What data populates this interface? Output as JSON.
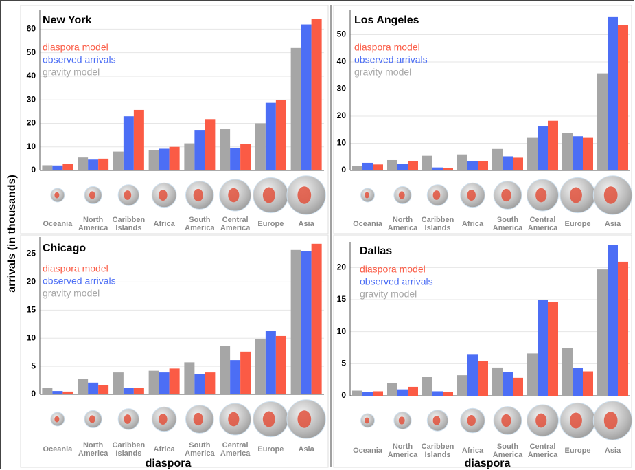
{
  "y_label": "arrivals (in thousands)",
  "x_label": "diaspora",
  "chart_data": [
    {
      "type": "bar",
      "title": "New York",
      "categories": [
        "Oceania",
        "North America",
        "Caribben Islands",
        "Africa",
        "South America",
        "Central America",
        "Europe",
        "Asia"
      ],
      "series": [
        {
          "name": "gravity model",
          "color": "#a6a6a6",
          "values": [
            2.2,
            5.5,
            8.0,
            8.5,
            11.5,
            17.5,
            20.0,
            52.0
          ]
        },
        {
          "name": "observed arrivals",
          "color": "#4c6ef5",
          "values": [
            2.1,
            4.6,
            23.0,
            9.2,
            17.2,
            9.5,
            28.7,
            62.0
          ]
        },
        {
          "name": "diaspora model",
          "color": "#fb5b45",
          "values": [
            2.9,
            5.0,
            25.7,
            10.0,
            21.8,
            11.2,
            30.0,
            64.5
          ]
        }
      ],
      "ylim": [
        0,
        68
      ],
      "yticks": [
        0,
        10,
        20,
        30,
        40,
        50,
        60
      ],
      "grid": true
    },
    {
      "type": "bar",
      "title": "Los Angeles",
      "categories": [
        "Oceania",
        "North America",
        "Caribben Islands",
        "Africa",
        "South America",
        "Central America",
        "Europe",
        "Asia"
      ],
      "series": [
        {
          "name": "gravity model",
          "color": "#a6a6a6",
          "values": [
            1.6,
            3.8,
            5.4,
            5.9,
            7.9,
            12.0,
            13.7,
            35.8
          ]
        },
        {
          "name": "observed arrivals",
          "color": "#4c6ef5",
          "values": [
            2.8,
            2.3,
            1.1,
            3.3,
            5.2,
            16.2,
            12.6,
            56.5
          ]
        },
        {
          "name": "diaspora model",
          "color": "#fb5b45",
          "values": [
            2.2,
            3.3,
            1.0,
            3.3,
            4.7,
            18.3,
            12.0,
            53.5
          ]
        }
      ],
      "ylim": [
        0,
        59
      ],
      "yticks": [
        0,
        10,
        20,
        30,
        40,
        50
      ],
      "grid": true
    },
    {
      "type": "bar",
      "title": "Chicago",
      "categories": [
        "Oceania",
        "North America",
        "Caribben Islands",
        "Africa",
        "South America",
        "Central America",
        "Europe",
        "Asia"
      ],
      "series": [
        {
          "name": "gravity model",
          "color": "#a6a6a6",
          "values": [
            1.1,
            2.7,
            3.9,
            4.2,
            5.7,
            8.6,
            9.8,
            25.7
          ]
        },
        {
          "name": "observed arrivals",
          "color": "#4c6ef5",
          "values": [
            0.6,
            2.1,
            1.1,
            3.9,
            3.6,
            6.1,
            11.3,
            25.5
          ]
        },
        {
          "name": "diaspora model",
          "color": "#fb5b45",
          "values": [
            0.5,
            1.6,
            1.1,
            4.6,
            3.9,
            7.6,
            10.4,
            26.8
          ]
        }
      ],
      "ylim": [
        0,
        28
      ],
      "yticks": [
        0,
        5,
        10,
        15,
        20,
        25
      ],
      "grid": true
    },
    {
      "type": "bar",
      "title": "Dallas",
      "categories": [
        "Oceania",
        "North America",
        "Caribben Islands",
        "Africa",
        "South America",
        "Central America",
        "Europe",
        "Asia"
      ],
      "series": [
        {
          "name": "gravity model",
          "color": "#a6a6a6",
          "values": [
            0.8,
            2.0,
            3.0,
            3.2,
            4.4,
            6.6,
            7.5,
            19.7
          ]
        },
        {
          "name": "observed arrivals",
          "color": "#4c6ef5",
          "values": [
            0.6,
            1.0,
            0.7,
            6.5,
            3.7,
            15.0,
            4.3,
            23.5
          ]
        },
        {
          "name": "diaspora model",
          "color": "#fb5b45",
          "values": [
            0.7,
            1.4,
            0.6,
            5.4,
            2.8,
            14.6,
            3.8,
            20.9
          ]
        }
      ],
      "ylim": [
        0,
        24
      ],
      "yticks": [
        0,
        5,
        10,
        15,
        20
      ],
      "grid": true
    }
  ]
}
